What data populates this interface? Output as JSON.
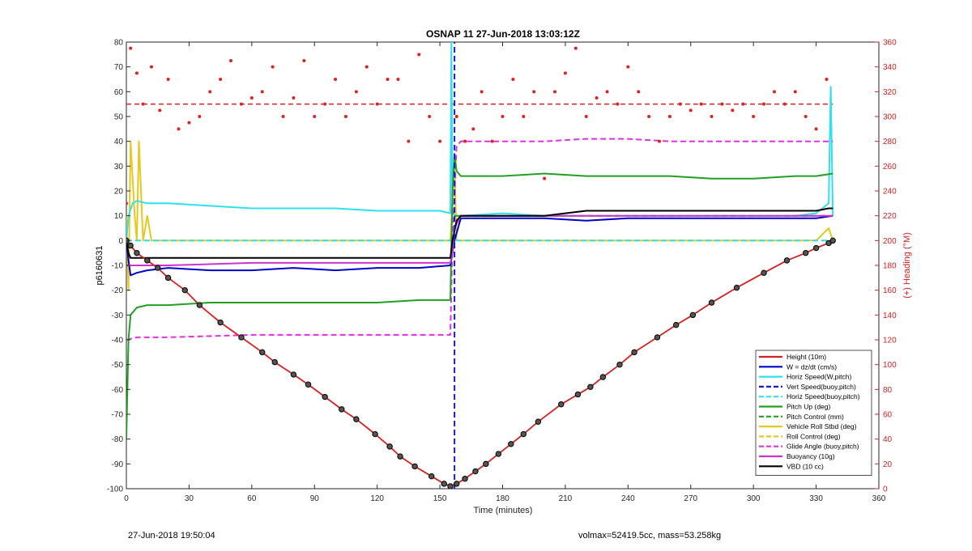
{
  "chart_data": {
    "type": "line",
    "title": "OSNAP 11 27-Jun-2018 13:03:12Z",
    "xlabel": "Time (minutes)",
    "ylabel": "p6160631",
    "y2label": "(+) Heading (°M)",
    "xlim": [
      0,
      360
    ],
    "ylim": [
      -100,
      80
    ],
    "y2lim": [
      0,
      360
    ],
    "xticks": [
      0,
      30,
      60,
      90,
      120,
      150,
      180,
      210,
      240,
      270,
      300,
      330,
      360
    ],
    "yticks": [
      80,
      70,
      60,
      50,
      40,
      30,
      20,
      10,
      0,
      -10,
      -20,
      -30,
      -40,
      -50,
      -60,
      -70,
      -80,
      -90,
      -100
    ],
    "y2ticks": [
      360,
      340,
      320,
      300,
      280,
      260,
      240,
      220,
      200,
      180,
      160,
      140,
      120,
      100,
      80,
      60,
      40,
      20,
      0
    ],
    "legend_position": "bottom-right",
    "series": [
      {
        "name": "Height (10m)",
        "color": "#d62020",
        "style": "solid",
        "x": [
          0,
          2,
          5,
          10,
          15,
          20,
          28,
          35,
          45,
          55,
          65,
          71,
          80,
          87,
          95,
          103,
          110,
          119,
          126,
          131,
          138,
          146,
          152,
          155,
          158,
          162,
          167,
          172,
          178,
          184,
          190,
          197,
          208,
          216,
          222,
          228,
          236,
          243,
          254,
          263,
          271,
          280,
          292,
          305,
          316,
          325,
          330,
          336,
          338
        ],
        "y": [
          0,
          -2,
          -5,
          -8,
          -11,
          -15,
          -20,
          -26,
          -33,
          -39,
          -45,
          -49,
          -54,
          -58,
          -63,
          -68,
          -72,
          -78,
          -83,
          -87,
          -91,
          -95,
          -98,
          -99,
          -98,
          -96,
          -93,
          -90,
          -86,
          -82,
          -78,
          -73,
          -66,
          -62,
          -59,
          -55,
          -50,
          -45,
          -39,
          -34,
          -30,
          -25,
          -19,
          -13,
          -8,
          -5,
          -3,
          -1,
          0
        ]
      },
      {
        "name": "W = dz/dt (cm/s)",
        "color": "#0000c8",
        "style": "solid",
        "x": [
          0,
          1,
          2,
          5,
          10,
          20,
          40,
          60,
          80,
          100,
          120,
          140,
          155,
          157,
          160,
          180,
          200,
          220,
          240,
          260,
          280,
          300,
          320,
          330,
          338
        ],
        "y": [
          0,
          -8,
          -14,
          -13,
          -12,
          -11,
          -12,
          -12,
          -11,
          -12,
          -11,
          -11,
          -10,
          0,
          9,
          9,
          9,
          8,
          9,
          9,
          9,
          9,
          9,
          9,
          10
        ]
      },
      {
        "name": "Horiz Speed(W,pitch)",
        "color": "#2fe0f0",
        "style": "solid",
        "x": [
          0,
          1,
          3,
          5,
          10,
          20,
          40,
          60,
          80,
          100,
          120,
          140,
          150,
          155,
          155.5,
          156,
          157,
          160,
          180,
          200,
          220,
          240,
          260,
          280,
          300,
          320,
          330,
          336,
          337,
          338
        ],
        "y": [
          0,
          10,
          15,
          16,
          15,
          15,
          14,
          13,
          13,
          13,
          12,
          12,
          12,
          11,
          80,
          12,
          10,
          10,
          11,
          10,
          10,
          10,
          10,
          10,
          10,
          10,
          11,
          15,
          62,
          10
        ]
      },
      {
        "name": "Vert Speed(buoy,pitch)",
        "color": "#1a1ad0",
        "style": "dashed",
        "x": [
          157,
          157
        ],
        "y": [
          -100,
          80
        ]
      },
      {
        "name": "Horiz Speed(buoy,pitch)",
        "color": "#2fe0f0",
        "style": "dashed",
        "x": [
          0,
          338
        ],
        "y": [
          0,
          0
        ]
      },
      {
        "name": "Pitch Up (deg)",
        "color": "#22a022",
        "style": "solid",
        "x": [
          0,
          1,
          2,
          5,
          10,
          20,
          40,
          60,
          80,
          100,
          120,
          140,
          155,
          156,
          157,
          158,
          160,
          180,
          200,
          220,
          240,
          260,
          280,
          300,
          320,
          330,
          338
        ],
        "y": [
          -80,
          -40,
          -30,
          -27,
          -26,
          -26,
          -25,
          -25,
          -25,
          -25,
          -25,
          -24,
          -24,
          20,
          35,
          28,
          26,
          26,
          27,
          26,
          26,
          26,
          25,
          25,
          26,
          26,
          27
        ]
      },
      {
        "name": "Pitch Control (mm)",
        "color": "#22a022",
        "style": "dashed",
        "x": [
          157,
          338
        ],
        "y": [
          10,
          10
        ]
      },
      {
        "name": "Vehicle Roll Stbd (deg)",
        "color": "#e6c81e",
        "style": "solid",
        "x": [
          0,
          1,
          2,
          4,
          5,
          6,
          8,
          10,
          12,
          14,
          18,
          22,
          28,
          30,
          60,
          90,
          120,
          150,
          155,
          157,
          158,
          160,
          170,
          190,
          210,
          240,
          270,
          300,
          320,
          330,
          336,
          338
        ],
        "y": [
          10,
          -20,
          40,
          10,
          0,
          40,
          0,
          10,
          0,
          0,
          0,
          0,
          0,
          0,
          0,
          0,
          0,
          0,
          0,
          30,
          0,
          0,
          0,
          0,
          0,
          0,
          0,
          0,
          0,
          0,
          5,
          0
        ]
      },
      {
        "name": "Roll Control (deg)",
        "color": "#e6c81e",
        "style": "dashed",
        "x": [
          0,
          338
        ],
        "y": [
          0,
          0
        ]
      },
      {
        "name": "Glide Angle (buoy,pitch)",
        "color": "#e030e0",
        "style": "dashed",
        "x": [
          0,
          5,
          20,
          60,
          100,
          140,
          155,
          156,
          158,
          160,
          180,
          200,
          220,
          240,
          260,
          280,
          300,
          320,
          330,
          338
        ],
        "y": [
          -40,
          -39,
          -39,
          -38,
          -38,
          -38,
          -38,
          0,
          38,
          40,
          40,
          40,
          41,
          41,
          40,
          40,
          40,
          40,
          40,
          40
        ]
      },
      {
        "name": "Buoyancy (10g)",
        "color": "#cc33cc",
        "style": "solid",
        "x": [
          0,
          2,
          5,
          20,
          60,
          100,
          140,
          155,
          156,
          157,
          160,
          180,
          220,
          260,
          300,
          330,
          338
        ],
        "y": [
          -10,
          -10,
          -10,
          -10,
          -9,
          -9,
          -9,
          -9,
          -5,
          5,
          10,
          10,
          10,
          10,
          10,
          10,
          10
        ]
      },
      {
        "name": "VBD (10 cc)",
        "color": "#000000",
        "style": "solid",
        "x": [
          0,
          1,
          2,
          155,
          156,
          158,
          160,
          200,
          220,
          300,
          330,
          336,
          338
        ],
        "y": [
          0,
          -5,
          -7,
          -7,
          0,
          8,
          10,
          10,
          12,
          12,
          12,
          13,
          13
        ]
      },
      {
        "name": "Heading",
        "color": "#e02020",
        "style": "points",
        "axis": "right",
        "x": [
          0,
          2,
          5,
          8,
          12,
          16,
          20,
          25,
          30,
          35,
          40,
          45,
          50,
          55,
          60,
          65,
          70,
          75,
          80,
          85,
          90,
          95,
          100,
          105,
          110,
          115,
          120,
          125,
          130,
          135,
          140,
          145,
          150,
          158,
          162,
          166,
          170,
          175,
          180,
          185,
          190,
          195,
          200,
          205,
          210,
          215,
          220,
          225,
          230,
          235,
          240,
          245,
          250,
          255,
          260,
          265,
          270,
          275,
          280,
          285,
          290,
          295,
          300,
          305,
          310,
          315,
          320,
          325,
          330,
          335
        ],
        "y": [
          230,
          355,
          335,
          310,
          340,
          305,
          330,
          290,
          295,
          300,
          320,
          330,
          345,
          310,
          315,
          320,
          340,
          300,
          315,
          345,
          300,
          310,
          330,
          300,
          320,
          340,
          310,
          330,
          330,
          280,
          350,
          300,
          280,
          300,
          280,
          290,
          320,
          280,
          300,
          330,
          300,
          320,
          250,
          320,
          335,
          355,
          300,
          315,
          320,
          310,
          340,
          320,
          300,
          280,
          300,
          310,
          305,
          310,
          300,
          310,
          305,
          310,
          300,
          310,
          320,
          310,
          320,
          300,
          290,
          330
        ]
      }
    ],
    "reference_lines": [
      {
        "color": "#d62020",
        "style": "dashed",
        "axis": "right",
        "y": 310,
        "x": [
          0,
          338
        ]
      }
    ]
  },
  "footer": {
    "timestamp": "27-Jun-2018 19:50:04",
    "info": "volmax=52419.5cc, mass=53.258kg"
  }
}
